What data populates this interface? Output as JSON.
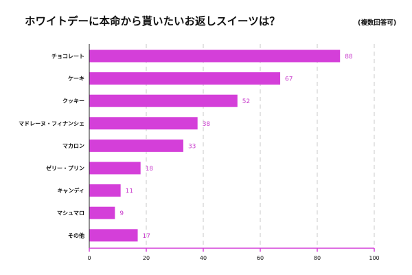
{
  "chart_data": {
    "type": "bar",
    "orientation": "horizontal",
    "title": "ホワイトデーに本命から貰いたいお返しスイーツは？",
    "subtitle": "(複数回答可)",
    "categories": [
      "チョコレート",
      "ケーキ",
      "クッキー",
      "マドレーヌ・フィナンシェ",
      "マカロン",
      "ゼリー・プリン",
      "キャンディ",
      "マシュマロ",
      "その他"
    ],
    "values": [
      88,
      67,
      52,
      38,
      33,
      18,
      11,
      9,
      17
    ],
    "xlim": [
      0,
      100
    ],
    "xticks": [
      0,
      20,
      40,
      60,
      80,
      100
    ],
    "grid": true,
    "bar_color": "#d43fd9",
    "label_color": "#c83acc",
    "axis_color": "#d43fd9",
    "grid_color": "#c8c8c8",
    "xlabel": "",
    "ylabel": ""
  }
}
